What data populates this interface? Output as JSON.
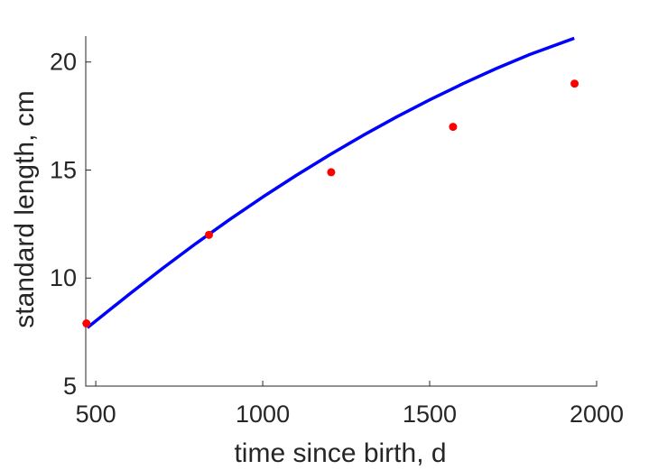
{
  "chart_data": {
    "type": "line",
    "xlabel": "time since birth, d",
    "ylabel": "standard length, cm",
    "xlim": [
      470,
      2000
    ],
    "ylim": [
      5,
      21.2
    ],
    "xticks": [
      500,
      1000,
      1500,
      2000
    ],
    "xtick_labels": [
      "500",
      "1000",
      "1500",
      "2000"
    ],
    "yticks": [
      5,
      10,
      15,
      20
    ],
    "ytick_labels": [
      "5",
      "10",
      "15",
      "20"
    ],
    "grid": false,
    "legend": "none",
    "series": [
      {
        "style": "line",
        "color": "#0000ff",
        "x": [
          475,
          600,
          700,
          800,
          900,
          1000,
          1100,
          1200,
          1300,
          1400,
          1500,
          1600,
          1700,
          1800,
          1933
        ],
        "y": [
          7.7,
          9.25,
          10.45,
          11.6,
          12.7,
          13.75,
          14.75,
          15.7,
          16.6,
          17.45,
          18.25,
          19.0,
          19.7,
          20.35,
          21.1
        ]
      },
      {
        "style": "scatter",
        "color": "#ff0000",
        "x": [
          472,
          839,
          1205,
          1570,
          1934
        ],
        "y": [
          7.9,
          12.0,
          14.9,
          17.0,
          19.0
        ]
      }
    ]
  }
}
